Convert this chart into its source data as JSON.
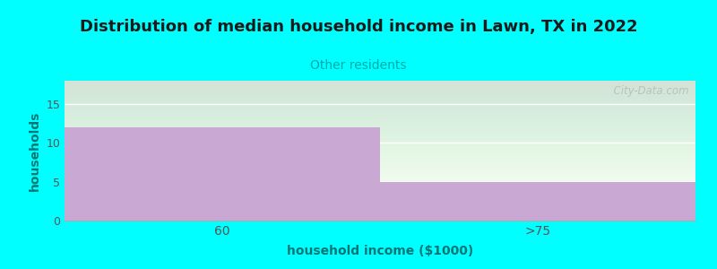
{
  "title": "Distribution of median household income in Lawn, TX in 2022",
  "subtitle": "Other residents",
  "xlabel": "household income ($1000)",
  "ylabel": "households",
  "categories": [
    "60",
    ">75"
  ],
  "values": [
    12,
    5
  ],
  "bar_color": "#C9A8D4",
  "background_color": "#00FFFF",
  "plot_bg_top": "#E8F5E8",
  "plot_bg_bottom": "#F8FFF8",
  "title_fontsize": 13,
  "subtitle_fontsize": 10,
  "subtitle_color": "#00AAAA",
  "axis_label_color": "#007777",
  "tick_color": "#555555",
  "ylim": [
    0,
    18
  ],
  "yticks": [
    0,
    5,
    10,
    15
  ],
  "watermark": "  City-Data.com"
}
